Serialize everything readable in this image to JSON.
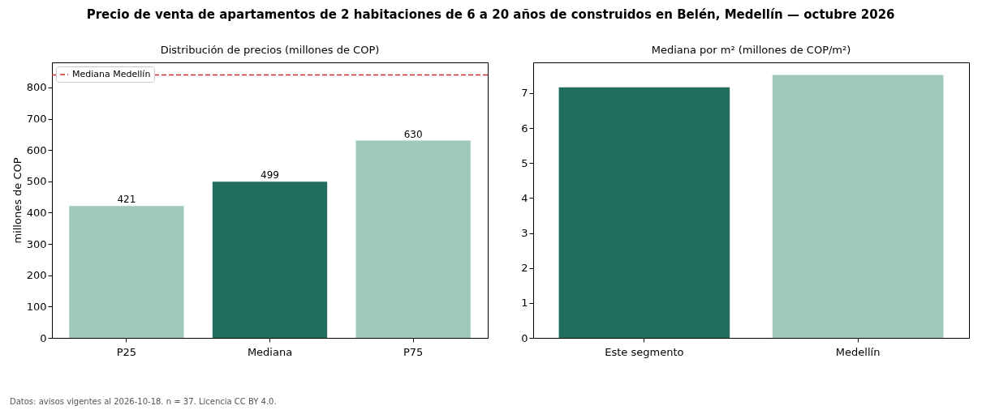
{
  "chart_data": [
    {
      "type": "bar",
      "title": "Distribución de precios (millones de COP)",
      "ylabel": "millones de COP",
      "categories": [
        "P25",
        "Mediana",
        "P75"
      ],
      "values": [
        421,
        499,
        630
      ],
      "colors": [
        "#9dc8bb",
        "#216e5e",
        "#9dc8bb"
      ],
      "ylim": [
        0,
        880
      ],
      "yticks": [
        0,
        100,
        200,
        300,
        400,
        500,
        600,
        700,
        800
      ],
      "grid": false,
      "data_labels": true,
      "legend": "top left",
      "ref_lines": [
        {
          "axis": "y",
          "value": 840,
          "label": "Mediana Medellín",
          "color": "#c9302c",
          "line_style": "dashed"
        }
      ],
      "annotations": [
        "Precio de venta de apartamentos de 2 habitaciones de 6 a 20 años de construidos en Belén, Medellín — octubre 2026",
        "Datos: avisos vigentes al 2026-10-18. n = 37. Licencia CC BY 4.0."
      ]
    },
    {
      "type": "bar",
      "title": "Mediana por m² (millones de COP/m²)",
      "categories": [
        "Este segmento",
        "Medellín"
      ],
      "values": [
        7.17,
        7.52
      ],
      "colors": [
        "#216e5e",
        "#9dc8bb"
      ],
      "ylim": [
        0,
        7.88
      ],
      "yticks": [
        0,
        1,
        2,
        3,
        4,
        5,
        6,
        7
      ],
      "grid": false
    }
  ]
}
